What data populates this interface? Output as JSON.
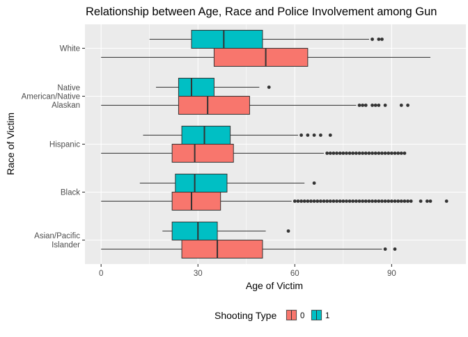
{
  "chart_data": {
    "type": "boxplot",
    "orientation": "horizontal",
    "title": "Relationship between Age, Race and Police Involvement among Gun",
    "xlabel": "Age of Victim",
    "ylabel": "Race of Victim",
    "xlim": [
      -5,
      113
    ],
    "x_ticks": [
      0,
      30,
      60,
      90
    ],
    "x_tick_labels": [
      "0",
      "30",
      "60",
      "90"
    ],
    "grid": true,
    "legend": {
      "title": "Shooting Type",
      "position": "bottom",
      "entries": [
        {
          "label": "0",
          "color": "#F8766D"
        },
        {
          "label": "1",
          "color": "#00BFC4"
        }
      ]
    },
    "categories": [
      {
        "label_lines": [
          "White"
        ]
      },
      {
        "label_lines": [
          "Native",
          "American/Native",
          "Alaskan"
        ]
      },
      {
        "label_lines": [
          "Hispanic"
        ]
      },
      {
        "label_lines": [
          "Black"
        ]
      },
      {
        "label_lines": [
          "Asian/Pacific",
          "Islander"
        ]
      }
    ],
    "series": [
      {
        "name": "0",
        "color": "#F8766D",
        "boxes": [
          {
            "whisker_low": 0,
            "q1": 35,
            "median": 51,
            "q3": 64,
            "whisker_high": 102,
            "outliers": []
          },
          {
            "whisker_low": 0,
            "q1": 24,
            "median": 33,
            "q3": 46,
            "whisker_high": 79,
            "outliers": [
              80,
              81,
              82,
              84,
              85,
              86,
              88,
              93,
              95
            ]
          },
          {
            "whisker_low": 0,
            "q1": 22,
            "median": 29,
            "q3": 41,
            "whisker_high": 69,
            "outliers": [
              70,
              71,
              72,
              73,
              74,
              75,
              76,
              77,
              78,
              79,
              80,
              81,
              82,
              83,
              84,
              85,
              86,
              87,
              88,
              89,
              90,
              91,
              92,
              93,
              94
            ]
          },
          {
            "whisker_low": 0,
            "q1": 22,
            "median": 28,
            "q3": 37,
            "whisker_high": 59,
            "outliers": [
              60,
              61,
              62,
              63,
              64,
              65,
              66,
              67,
              68,
              69,
              70,
              71,
              72,
              73,
              74,
              75,
              76,
              77,
              78,
              79,
              80,
              81,
              82,
              83,
              84,
              85,
              86,
              87,
              88,
              89,
              90,
              91,
              92,
              93,
              94,
              95,
              96,
              99,
              101,
              102,
              107
            ]
          },
          {
            "whisker_low": 0,
            "q1": 25,
            "median": 36,
            "q3": 50,
            "whisker_high": 87,
            "outliers": [
              88,
              91
            ]
          }
        ]
      },
      {
        "name": "1",
        "color": "#00BFC4",
        "boxes": [
          {
            "whisker_low": 15,
            "q1": 28,
            "median": 38,
            "q3": 50,
            "whisker_high": 83,
            "outliers": [
              84,
              86,
              87
            ]
          },
          {
            "whisker_low": 17,
            "q1": 24,
            "median": 28,
            "q3": 35,
            "whisker_high": 49,
            "outliers": [
              52
            ]
          },
          {
            "whisker_low": 13,
            "q1": 25,
            "median": 32,
            "q3": 40,
            "whisker_high": 61,
            "outliers": [
              62,
              64,
              66,
              68,
              71
            ]
          },
          {
            "whisker_low": 12,
            "q1": 23,
            "median": 29,
            "q3": 39,
            "whisker_high": 63,
            "outliers": [
              66
            ]
          },
          {
            "whisker_low": 19,
            "q1": 22,
            "median": 30,
            "q3": 36,
            "whisker_high": 51,
            "outliers": [
              58
            ]
          }
        ]
      }
    ]
  }
}
